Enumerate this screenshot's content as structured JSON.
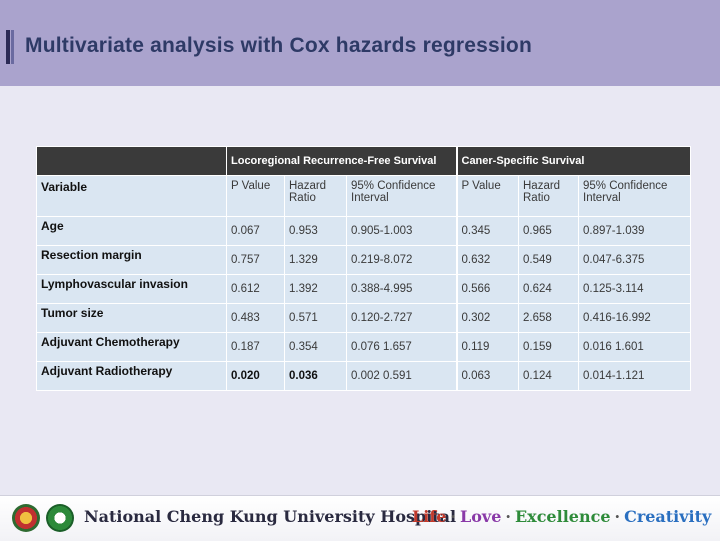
{
  "slide": {
    "title": "Multivariate analysis with Cox hazards regression"
  },
  "table": {
    "groups": [
      "Locoregional Recurrence-Free Survival",
      "Caner-Specific Survival"
    ],
    "variable_header": "Variable",
    "subheaders": [
      "P Value",
      "Hazard Ratio",
      "95% Confidence Interval",
      "P Value",
      "Hazard Ratio",
      "95% Confidence Interval"
    ],
    "rows": [
      {
        "variable": "Age",
        "lrfs_p": "0.067",
        "lrfs_hr": "0.953",
        "lrfs_ci": "0.905-1.003",
        "css_p": "0.345",
        "css_hr": "0.965",
        "css_ci": "0.897-1.039"
      },
      {
        "variable": "Resection margin",
        "lrfs_p": "0.757",
        "lrfs_hr": "1.329",
        "lrfs_ci": "0.219-8.072",
        "css_p": "0.632",
        "css_hr": "0.549",
        "css_ci": "0.047-6.375"
      },
      {
        "variable": "Lymphovascular invasion",
        "lrfs_p": "0.612",
        "lrfs_hr": "1.392",
        "lrfs_ci": "0.388-4.995",
        "css_p": "0.566",
        "css_hr": "0.624",
        "css_ci": "0.125-3.114"
      },
      {
        "variable": "Tumor size",
        "lrfs_p": "0.483",
        "lrfs_hr": "0.571",
        "lrfs_ci": "0.120-2.727",
        "css_p": "0.302",
        "css_hr": "2.658",
        "css_ci": "0.416-16.992"
      },
      {
        "variable": "Adjuvant Chemotherapy",
        "lrfs_p": "0.187",
        "lrfs_hr": "0.354",
        "lrfs_ci": "0.076 1.657",
        "css_p": "0.119",
        "css_hr": "0.159",
        "css_ci": "0.016 1.601"
      },
      {
        "variable": "Adjuvant Radiotherapy",
        "lrfs_p": "0.020",
        "lrfs_hr": "0.036",
        "lrfs_ci": "0.002 0.591",
        "css_p": "0.063",
        "css_hr": "0.124",
        "css_ci": "0.014-1.121"
      }
    ]
  },
  "footer": {
    "hospital_name": "National Cheng Kung University Hospital",
    "motto": {
      "life": "Life",
      "love": "Love",
      "excellence": "Excellence",
      "creativity": "Creativity",
      "separator": "·"
    },
    "logo_icons": [
      "hospital-emblem-icon",
      "university-emblem-icon"
    ]
  },
  "colors": {
    "header_bg": "#aaa3cd",
    "title_color": "#2e3a66",
    "table_header_bg": "#3a3a3a",
    "table_cell_bg": "#dae6f2",
    "page_bg": "#e9e8f3"
  }
}
